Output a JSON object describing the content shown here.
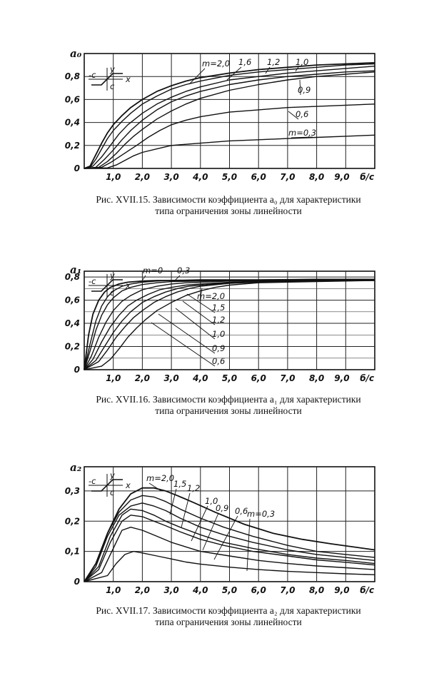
{
  "chart_data": [
    {
      "type": "line",
      "ylabel": "a₀",
      "xlabel": "б/с",
      "xlim": [
        0,
        10
      ],
      "ylim": [
        0,
        1.0
      ],
      "xticks": [
        "1,0",
        "2,0",
        "3,0",
        "4,0",
        "5,0",
        "6,0",
        "7,0",
        "8,0",
        "9,0"
      ],
      "yticks": [
        "0",
        "0,2",
        "0,4",
        "0,6",
        "0,8"
      ],
      "inset": {
        "y": "y",
        "x": "x",
        "neg": "-c",
        "pos": "c"
      },
      "caption_line1": "Рис. XVII.15.  Зависимости коэффициента a₀ для характеристики",
      "caption_line2": "типа ограничения зоны линейности",
      "labels": [
        "m=2,0",
        "1,6",
        "1,2",
        "1,0",
        "0,9",
        "0,6",
        "m=0,3"
      ],
      "series": [
        {
          "x": [
            0,
            0.2,
            0.4,
            0.6,
            0.8,
            1,
            1.3,
            1.6,
            2,
            2.5,
            3,
            3.5,
            4,
            5,
            6,
            7,
            8,
            9,
            10
          ],
          "values": [
            0,
            0.02,
            0.12,
            0.22,
            0.31,
            0.38,
            0.46,
            0.53,
            0.6,
            0.67,
            0.72,
            0.76,
            0.79,
            0.83,
            0.86,
            0.88,
            0.9,
            0.91,
            0.92
          ]
        },
        {
          "x": [
            0,
            0.2,
            0.4,
            0.6,
            0.8,
            1,
            1.3,
            1.6,
            2,
            2.5,
            3,
            3.5,
            4,
            5,
            6,
            7,
            8,
            9,
            10
          ],
          "values": [
            0,
            0.01,
            0.08,
            0.17,
            0.26,
            0.33,
            0.41,
            0.48,
            0.56,
            0.63,
            0.69,
            0.73,
            0.76,
            0.81,
            0.84,
            0.86,
            0.88,
            0.9,
            0.91
          ]
        },
        {
          "x": [
            0,
            0.3,
            0.6,
            0.9,
            1.2,
            1.5,
            2,
            2.5,
            3,
            3.5,
            4,
            5,
            6,
            7,
            8,
            9,
            10
          ],
          "values": [
            0,
            0.02,
            0.1,
            0.2,
            0.3,
            0.38,
            0.48,
            0.56,
            0.62,
            0.67,
            0.71,
            0.77,
            0.8,
            0.83,
            0.85,
            0.87,
            0.89
          ]
        },
        {
          "x": [
            0,
            0.4,
            0.7,
            1,
            1.3,
            1.6,
            2,
            2.5,
            3,
            3.5,
            4,
            5,
            6,
            7,
            8,
            9,
            10
          ],
          "values": [
            0,
            0.01,
            0.08,
            0.16,
            0.25,
            0.33,
            0.42,
            0.51,
            0.58,
            0.63,
            0.67,
            0.73,
            0.77,
            0.8,
            0.82,
            0.84,
            0.85
          ]
        },
        {
          "x": [
            0,
            0.5,
            0.8,
            1.1,
            1.4,
            1.7,
            2,
            2.5,
            3,
            3.5,
            4,
            5,
            6,
            7,
            8,
            9,
            10
          ],
          "values": [
            0,
            0.01,
            0.06,
            0.13,
            0.21,
            0.28,
            0.34,
            0.43,
            0.5,
            0.56,
            0.61,
            0.68,
            0.73,
            0.77,
            0.8,
            0.82,
            0.84
          ]
        },
        {
          "x": [
            0,
            0.6,
            0.9,
            1.2,
            1.5,
            1.8,
            2.2,
            2.6,
            3,
            3.5,
            4,
            5,
            6,
            7,
            8,
            9,
            10
          ],
          "values": [
            0,
            0.01,
            0.05,
            0.1,
            0.15,
            0.2,
            0.27,
            0.33,
            0.38,
            0.42,
            0.45,
            0.49,
            0.51,
            0.53,
            0.54,
            0.55,
            0.56
          ]
        },
        {
          "x": [
            0,
            0.8,
            1.1,
            1.4,
            1.7,
            2,
            2.5,
            3,
            3.5,
            4,
            5,
            6,
            7,
            8,
            9,
            10
          ],
          "values": [
            0,
            0.005,
            0.03,
            0.07,
            0.11,
            0.14,
            0.17,
            0.2,
            0.21,
            0.22,
            0.24,
            0.25,
            0.26,
            0.27,
            0.28,
            0.29
          ]
        }
      ]
    },
    {
      "type": "line",
      "ylabel": "a₁",
      "xlabel": "б/с",
      "xlim": [
        0,
        10
      ],
      "ylim": [
        0,
        0.85
      ],
      "xticks": [
        "1,0",
        "2,0",
        "3,0",
        "4,0",
        "5,0",
        "6,0",
        "7,0",
        "8,0",
        "9,0"
      ],
      "yticks": [
        "0",
        "0,2",
        "0,4",
        "0,6",
        "0,8"
      ],
      "inset": {
        "y": "y",
        "x": "x",
        "neg": "-c",
        "pos": "c"
      },
      "caption_line1": "Рис. XVII.16.  Зависимости коэффициента a₁ для характеристики",
      "caption_line2": "типа ограничения зоны линейности",
      "labels": [
        "m=0",
        "0,3",
        "m=2,0",
        "1,5",
        "1,2",
        "1,0",
        "0,9",
        "0,6"
      ],
      "series": [
        {
          "x": [
            0,
            0.15,
            0.3,
            0.5,
            0.7,
            0.9,
            1.2,
            1.5,
            2,
            2.5,
            3,
            4,
            5,
            6,
            8,
            10
          ],
          "values": [
            0,
            0.3,
            0.48,
            0.6,
            0.67,
            0.71,
            0.74,
            0.755,
            0.765,
            0.77,
            0.77,
            0.775,
            0.775,
            0.775,
            0.78,
            0.78
          ]
        },
        {
          "x": [
            0,
            0.2,
            0.4,
            0.6,
            0.8,
            1,
            1.3,
            1.6,
            2,
            2.5,
            3,
            4,
            5,
            6,
            8,
            10
          ],
          "values": [
            0,
            0.22,
            0.42,
            0.55,
            0.63,
            0.68,
            0.72,
            0.74,
            0.755,
            0.765,
            0.77,
            0.77,
            0.775,
            0.775,
            0.78,
            0.78
          ]
        },
        {
          "x": [
            0,
            0.2,
            0.4,
            0.6,
            0.8,
            1,
            1.3,
            1.6,
            2,
            2.5,
            3,
            4,
            5,
            6,
            8,
            10
          ],
          "values": [
            0,
            0.16,
            0.34,
            0.47,
            0.56,
            0.62,
            0.68,
            0.71,
            0.735,
            0.75,
            0.76,
            0.765,
            0.77,
            0.77,
            0.775,
            0.78
          ]
        },
        {
          "x": [
            0,
            0.25,
            0.5,
            0.75,
            1,
            1.3,
            1.6,
            2,
            2.5,
            3,
            3.5,
            4,
            5,
            6,
            8,
            10
          ],
          "values": [
            0,
            0.12,
            0.28,
            0.41,
            0.51,
            0.59,
            0.64,
            0.69,
            0.72,
            0.74,
            0.75,
            0.755,
            0.765,
            0.77,
            0.775,
            0.78
          ]
        },
        {
          "x": [
            0,
            0.3,
            0.6,
            0.9,
            1.2,
            1.5,
            1.8,
            2.2,
            2.6,
            3,
            3.5,
            4,
            5,
            6,
            8,
            10
          ],
          "values": [
            0,
            0.09,
            0.24,
            0.37,
            0.47,
            0.55,
            0.6,
            0.65,
            0.69,
            0.71,
            0.73,
            0.74,
            0.755,
            0.765,
            0.77,
            0.775
          ]
        },
        {
          "x": [
            0,
            0.4,
            0.7,
            1,
            1.3,
            1.6,
            2,
            2.4,
            2.8,
            3.2,
            3.6,
            4,
            5,
            6,
            8,
            10
          ],
          "values": [
            0,
            0.08,
            0.2,
            0.32,
            0.42,
            0.5,
            0.58,
            0.63,
            0.67,
            0.7,
            0.72,
            0.73,
            0.75,
            0.76,
            0.77,
            0.775
          ]
        },
        {
          "x": [
            0,
            0.5,
            0.8,
            1.1,
            1.4,
            1.7,
            2,
            2.4,
            2.8,
            3.2,
            3.6,
            4,
            5,
            6,
            8,
            10
          ],
          "values": [
            0,
            0.07,
            0.17,
            0.28,
            0.37,
            0.45,
            0.51,
            0.58,
            0.63,
            0.67,
            0.7,
            0.72,
            0.745,
            0.755,
            0.765,
            0.77
          ]
        },
        {
          "x": [
            0,
            0.6,
            0.9,
            1.2,
            1.5,
            1.8,
            2.1,
            2.5,
            3,
            3.5,
            4,
            4.5,
            5,
            6,
            8,
            10
          ],
          "values": [
            0,
            0.03,
            0.09,
            0.18,
            0.28,
            0.36,
            0.43,
            0.51,
            0.58,
            0.64,
            0.68,
            0.71,
            0.73,
            0.75,
            0.76,
            0.77
          ]
        }
      ]
    },
    {
      "type": "line",
      "ylabel": "a₂",
      "xlabel": "б/с",
      "xlim": [
        0,
        10
      ],
      "ylim": [
        0,
        0.38
      ],
      "xticks": [
        "1,0",
        "2,0",
        "3,0",
        "4,0",
        "5,0",
        "6,0",
        "7,0",
        "8,0",
        "9,0"
      ],
      "yticks": [
        "0",
        "0,1",
        "0,2",
        "0,3"
      ],
      "inset": {
        "y": "y",
        "x": "x",
        "neg": "-c",
        "pos": "c"
      },
      "caption_line1": "Рис. XVII.17.  Зависимости коэффициента a₂ для характеристики",
      "caption_line2": "типа ограничения зоны линейности",
      "labels": [
        "m=2,0",
        "1,5",
        "1,2",
        "1,0",
        "0,9",
        "0,6",
        "m=0,3"
      ],
      "series": [
        {
          "x": [
            0,
            0.4,
            0.8,
            1.2,
            1.6,
            2,
            2.4,
            2.8,
            3.2,
            3.8,
            4.5,
            5.5,
            6.5,
            7.5,
            8.5,
            10
          ],
          "values": [
            0,
            0.06,
            0.16,
            0.24,
            0.29,
            0.31,
            0.31,
            0.3,
            0.285,
            0.26,
            0.23,
            0.19,
            0.16,
            0.14,
            0.125,
            0.105
          ]
        },
        {
          "x": [
            0,
            0.4,
            0.8,
            1.2,
            1.6,
            2,
            2.4,
            2.8,
            3.3,
            4,
            4.8,
            5.8,
            7,
            8,
            9,
            10
          ],
          "values": [
            0,
            0.06,
            0.16,
            0.23,
            0.27,
            0.285,
            0.28,
            0.265,
            0.24,
            0.21,
            0.18,
            0.15,
            0.12,
            0.1,
            0.09,
            0.08
          ]
        },
        {
          "x": [
            0,
            0.4,
            0.8,
            1.2,
            1.6,
            2,
            2.4,
            2.8,
            3.3,
            4,
            4.8,
            5.8,
            7,
            8,
            9,
            10
          ],
          "values": [
            0,
            0.05,
            0.15,
            0.22,
            0.25,
            0.26,
            0.25,
            0.235,
            0.21,
            0.18,
            0.155,
            0.13,
            0.105,
            0.09,
            0.08,
            0.07
          ]
        },
        {
          "x": [
            0,
            0.5,
            0.9,
            1.3,
            1.6,
            2,
            2.4,
            2.8,
            3.3,
            4,
            4.8,
            5.8,
            7,
            8,
            9,
            10
          ],
          "values": [
            0,
            0.05,
            0.15,
            0.22,
            0.24,
            0.235,
            0.22,
            0.2,
            0.18,
            0.155,
            0.13,
            0.11,
            0.09,
            0.078,
            0.07,
            0.06
          ]
        },
        {
          "x": [
            0,
            0.5,
            0.9,
            1.3,
            1.6,
            2,
            2.4,
            2.8,
            3.3,
            4,
            4.8,
            5.8,
            7,
            8,
            9,
            10
          ],
          "values": [
            0,
            0.04,
            0.13,
            0.2,
            0.22,
            0.215,
            0.2,
            0.185,
            0.165,
            0.14,
            0.12,
            0.1,
            0.085,
            0.072,
            0.064,
            0.055
          ]
        },
        {
          "x": [
            0,
            0.6,
            1,
            1.3,
            1.6,
            2,
            2.5,
            3,
            3.5,
            4,
            5,
            6,
            7,
            8,
            9,
            10
          ],
          "values": [
            0,
            0.03,
            0.11,
            0.17,
            0.18,
            0.17,
            0.15,
            0.13,
            0.115,
            0.1,
            0.085,
            0.07,
            0.06,
            0.052,
            0.046,
            0.04
          ]
        },
        {
          "x": [
            0,
            0.8,
            1.1,
            1.4,
            1.7,
            2,
            2.5,
            3,
            3.5,
            4,
            5,
            6,
            7,
            8,
            9,
            10
          ],
          "values": [
            0,
            0.02,
            0.06,
            0.09,
            0.1,
            0.095,
            0.085,
            0.075,
            0.065,
            0.058,
            0.048,
            0.04,
            0.034,
            0.03,
            0.026,
            0.023
          ]
        }
      ]
    }
  ]
}
